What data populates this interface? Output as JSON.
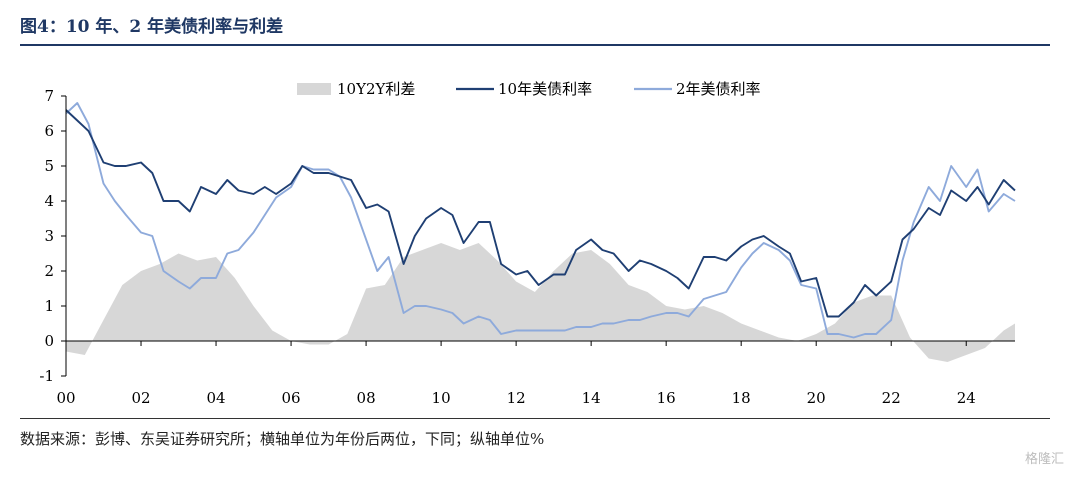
{
  "header": {
    "title": "图4：10 年、2 年美债利率与利差"
  },
  "footer": {
    "source": "数据来源：彭博、东吴证券研究所；横轴单位为年份后两位，下同；纵轴单位%",
    "watermark": "格隆汇"
  },
  "colors": {
    "spread": "#d7d7d7",
    "y10": "#1f3f73",
    "y2": "#8eaadb",
    "axis": "#000000",
    "title": "#1f3864"
  },
  "chart_data": {
    "type": "area",
    "title": "",
    "xlabel": "",
    "ylabel": "",
    "xlim": [
      2000,
      2025.3
    ],
    "ylim": [
      -1,
      7
    ],
    "grid": false,
    "legend_position": "top-center",
    "x_tick_labels": [
      "00",
      "02",
      "04",
      "06",
      "08",
      "10",
      "12",
      "14",
      "16",
      "18",
      "20",
      "22",
      "24"
    ],
    "x_tick_values": [
      2000,
      2002,
      2004,
      2006,
      2008,
      2010,
      2012,
      2014,
      2016,
      2018,
      2020,
      2022,
      2024
    ],
    "y_ticks": [
      -1,
      0,
      1,
      2,
      3,
      4,
      5,
      6,
      7
    ],
    "legend": [
      "10Y2Y利差",
      "10年美债利率",
      "2年美债利率"
    ],
    "series": [
      {
        "name": "10Y2Y利差",
        "type": "area",
        "x": [
          2000.0,
          2000.5,
          2001.0,
          2001.5,
          2002.0,
          2002.5,
          2003.0,
          2003.5,
          2004.0,
          2004.5,
          2005.0,
          2005.5,
          2006.0,
          2006.5,
          2007.0,
          2007.5,
          2008.0,
          2008.5,
          2009.0,
          2009.5,
          2010.0,
          2010.5,
          2011.0,
          2011.5,
          2012.0,
          2012.5,
          2013.0,
          2013.5,
          2014.0,
          2014.5,
          2015.0,
          2015.5,
          2016.0,
          2016.5,
          2017.0,
          2017.5,
          2018.0,
          2018.5,
          2019.0,
          2019.5,
          2020.0,
          2020.5,
          2021.0,
          2021.5,
          2022.0,
          2022.5,
          2023.0,
          2023.5,
          2024.0,
          2024.5,
          2025.0,
          2025.3
        ],
        "values": [
          -0.3,
          -0.4,
          0.6,
          1.6,
          2.0,
          2.2,
          2.5,
          2.3,
          2.4,
          1.8,
          1.0,
          0.3,
          0.0,
          -0.1,
          -0.1,
          0.2,
          1.5,
          1.6,
          2.4,
          2.6,
          2.8,
          2.6,
          2.8,
          2.3,
          1.7,
          1.4,
          2.0,
          2.5,
          2.6,
          2.2,
          1.6,
          1.4,
          1.0,
          0.9,
          1.0,
          0.8,
          0.5,
          0.3,
          0.1,
          0.0,
          0.2,
          0.5,
          1.1,
          1.3,
          1.3,
          0.1,
          -0.5,
          -0.6,
          -0.4,
          -0.2,
          0.3,
          0.5
        ]
      },
      {
        "name": "10年美债利率",
        "type": "line",
        "x": [
          2000.0,
          2000.3,
          2000.6,
          2001.0,
          2001.3,
          2001.6,
          2002.0,
          2002.3,
          2002.6,
          2003.0,
          2003.3,
          2003.6,
          2004.0,
          2004.3,
          2004.6,
          2005.0,
          2005.3,
          2005.6,
          2006.0,
          2006.3,
          2006.6,
          2007.0,
          2007.3,
          2007.6,
          2008.0,
          2008.3,
          2008.6,
          2009.0,
          2009.3,
          2009.6,
          2010.0,
          2010.3,
          2010.6,
          2011.0,
          2011.3,
          2011.6,
          2012.0,
          2012.3,
          2012.6,
          2013.0,
          2013.3,
          2013.6,
          2014.0,
          2014.3,
          2014.6,
          2015.0,
          2015.3,
          2015.6,
          2016.0,
          2016.3,
          2016.6,
          2017.0,
          2017.3,
          2017.6,
          2018.0,
          2018.3,
          2018.6,
          2019.0,
          2019.3,
          2019.6,
          2020.0,
          2020.3,
          2020.6,
          2021.0,
          2021.3,
          2021.6,
          2022.0,
          2022.3,
          2022.6,
          2023.0,
          2023.3,
          2023.6,
          2024.0,
          2024.3,
          2024.6,
          2025.0,
          2025.3
        ],
        "values": [
          6.6,
          6.3,
          6.0,
          5.1,
          5.0,
          5.0,
          5.1,
          4.8,
          4.0,
          4.0,
          3.7,
          4.4,
          4.2,
          4.6,
          4.3,
          4.2,
          4.4,
          4.2,
          4.5,
          5.0,
          4.8,
          4.8,
          4.7,
          4.6,
          3.8,
          3.9,
          3.7,
          2.2,
          3.0,
          3.5,
          3.8,
          3.6,
          2.8,
          3.4,
          3.4,
          2.2,
          1.9,
          2.0,
          1.6,
          1.9,
          1.9,
          2.6,
          2.9,
          2.6,
          2.5,
          2.0,
          2.3,
          2.2,
          2.0,
          1.8,
          1.5,
          2.4,
          2.4,
          2.3,
          2.7,
          2.9,
          3.0,
          2.7,
          2.5,
          1.7,
          1.8,
          0.7,
          0.7,
          1.1,
          1.6,
          1.3,
          1.7,
          2.9,
          3.2,
          3.8,
          3.6,
          4.3,
          4.0,
          4.4,
          3.9,
          4.6,
          4.3
        ]
      },
      {
        "name": "2年美债利率",
        "type": "line",
        "x": [
          2000.0,
          2000.3,
          2000.6,
          2001.0,
          2001.3,
          2001.6,
          2002.0,
          2002.3,
          2002.6,
          2003.0,
          2003.3,
          2003.6,
          2004.0,
          2004.3,
          2004.6,
          2005.0,
          2005.3,
          2005.6,
          2006.0,
          2006.3,
          2006.6,
          2007.0,
          2007.3,
          2007.6,
          2008.0,
          2008.3,
          2008.6,
          2009.0,
          2009.3,
          2009.6,
          2010.0,
          2010.3,
          2010.6,
          2011.0,
          2011.3,
          2011.6,
          2012.0,
          2012.3,
          2012.6,
          2013.0,
          2013.3,
          2013.6,
          2014.0,
          2014.3,
          2014.6,
          2015.0,
          2015.3,
          2015.6,
          2016.0,
          2016.3,
          2016.6,
          2017.0,
          2017.3,
          2017.6,
          2018.0,
          2018.3,
          2018.6,
          2019.0,
          2019.3,
          2019.6,
          2020.0,
          2020.3,
          2020.6,
          2021.0,
          2021.3,
          2021.6,
          2022.0,
          2022.3,
          2022.6,
          2023.0,
          2023.3,
          2023.6,
          2024.0,
          2024.3,
          2024.6,
          2025.0,
          2025.3
        ],
        "values": [
          6.5,
          6.8,
          6.2,
          4.5,
          4.0,
          3.6,
          3.1,
          3.0,
          2.0,
          1.7,
          1.5,
          1.8,
          1.8,
          2.5,
          2.6,
          3.1,
          3.6,
          4.1,
          4.4,
          5.0,
          4.9,
          4.9,
          4.7,
          4.1,
          2.9,
          2.0,
          2.4,
          0.8,
          1.0,
          1.0,
          0.9,
          0.8,
          0.5,
          0.7,
          0.6,
          0.2,
          0.3,
          0.3,
          0.3,
          0.3,
          0.3,
          0.4,
          0.4,
          0.5,
          0.5,
          0.6,
          0.6,
          0.7,
          0.8,
          0.8,
          0.7,
          1.2,
          1.3,
          1.4,
          2.1,
          2.5,
          2.8,
          2.6,
          2.3,
          1.6,
          1.5,
          0.2,
          0.2,
          0.1,
          0.2,
          0.2,
          0.6,
          2.3,
          3.4,
          4.4,
          4.0,
          5.0,
          4.4,
          4.9,
          3.7,
          4.2,
          4.0
        ]
      }
    ]
  }
}
